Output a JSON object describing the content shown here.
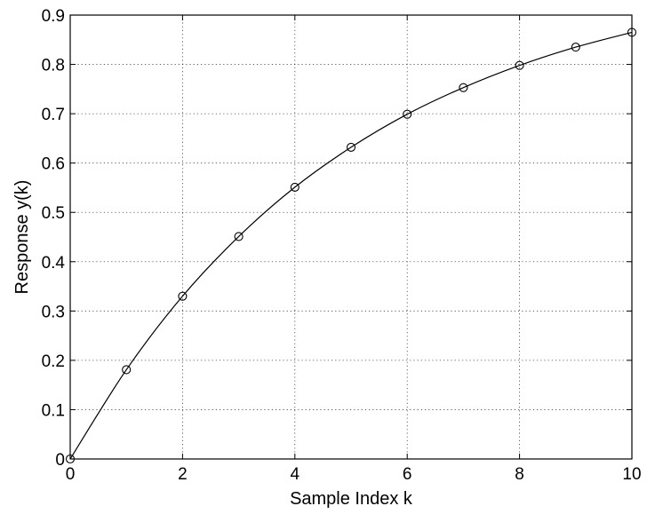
{
  "chart_data": {
    "type": "line",
    "xlabel": "Sample Index k",
    "ylabel": "Response y(k)",
    "xlim": [
      0,
      10
    ],
    "ylim": [
      0,
      0.9
    ],
    "xticks": [
      0,
      2,
      4,
      6,
      8,
      10
    ],
    "xtick_labels": [
      "0",
      "2",
      "4",
      "6",
      "8",
      "10"
    ],
    "yticks": [
      0,
      0.1,
      0.2,
      0.3,
      0.4,
      0.5,
      0.6,
      0.7,
      0.8,
      0.9
    ],
    "ytick_labels": [
      "0",
      "0.1",
      "0.2",
      "0.3",
      "0.4",
      "0.5",
      "0.6",
      "0.7",
      "0.8",
      "0.9"
    ],
    "grid": true,
    "series": [
      {
        "marker": "circle",
        "color": "#000000",
        "x": [
          0,
          1,
          2,
          3,
          4,
          5,
          6,
          7,
          8,
          9,
          10
        ],
        "y": [
          0,
          0.181,
          0.33,
          0.451,
          0.551,
          0.632,
          0.699,
          0.753,
          0.798,
          0.835,
          0.865
        ]
      }
    ]
  }
}
